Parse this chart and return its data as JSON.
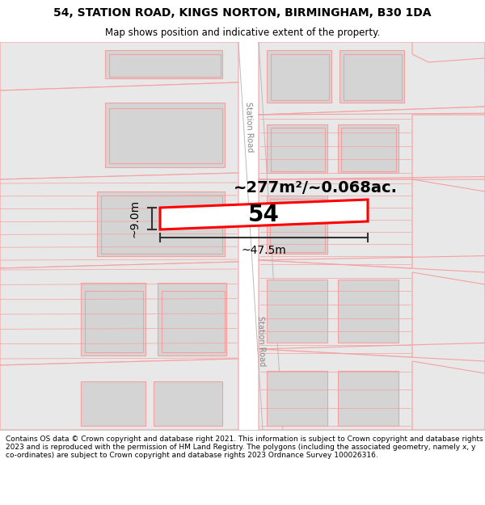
{
  "title": "54, STATION ROAD, KINGS NORTON, BIRMINGHAM, B30 1DA",
  "subtitle": "Map shows position and indicative extent of the property.",
  "footer": "Contains OS data © Crown copyright and database right 2021. This information is subject to Crown copyright and database rights 2023 and is reproduced with the permission of HM Land Registry. The polygons (including the associated geometry, namely x, y co-ordinates) are subject to Crown copyright and database rights 2023 Ordnance Survey 100026316.",
  "map_bg": "#f5f5f5",
  "road_fill": "#ffffff",
  "block_fill": "#e8e8e8",
  "building_fill": "#d4d4d4",
  "highlight_fill": "#ffffff",
  "highlight_edge": "#ff0000",
  "road_line_color": "#f5a0a0",
  "road_label_color": "#888888",
  "area_text": "~277m²/~0.068ac.",
  "width_text": "~47.5m",
  "height_text": "~9.0m",
  "number_text": "54",
  "station_road_label": "Station Road",
  "title_fontsize": 10,
  "subtitle_fontsize": 8.5,
  "footer_fontsize": 6.5,
  "area_fontsize": 14,
  "dim_fontsize": 10,
  "number_fontsize": 20
}
